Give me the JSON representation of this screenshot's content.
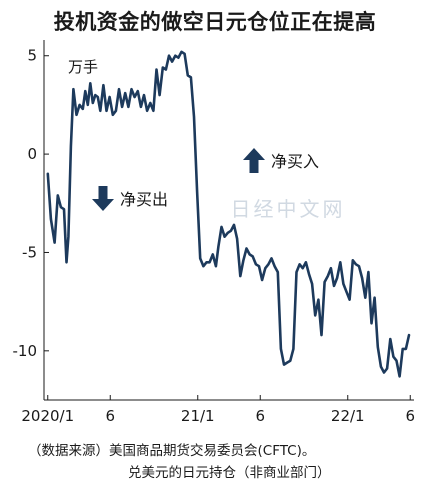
{
  "title": "投机资金的做空日元仓位正在提高",
  "watermark": "日经中文网",
  "source_line1": "（数据来源）美国商品期货交易委员会(CFTC)。",
  "source_line2": "兑美元的日元持仓（非商业部门）",
  "colors": {
    "line": "#1d3a5c",
    "arrow": "#1d3a5c",
    "axis": "#1a1a1a"
  },
  "chart_data": {
    "type": "line",
    "unit_label": "万手",
    "annotations": [
      {
        "text": "净买入",
        "direction": "up-arrow"
      },
      {
        "text": "净买出",
        "direction": "down-arrow"
      }
    ],
    "x_ticks": [
      {
        "label": "2020/1",
        "x": 0
      },
      {
        "label": "6",
        "x": 5
      },
      {
        "label": "21/1",
        "x": 12
      },
      {
        "label": "6",
        "x": 17
      },
      {
        "label": "22/1",
        "x": 24
      },
      {
        "label": "6",
        "x": 29
      }
    ],
    "xlim": [
      -0.3,
      29.3
    ],
    "y_ticks": [
      5,
      0,
      -5,
      -10
    ],
    "ylim": [
      -12.5,
      5.8
    ],
    "grid": false,
    "series": [
      {
        "x": [
          0.0,
          0.25,
          0.55,
          0.8,
          1.05,
          1.3,
          1.5,
          1.65,
          1.85,
          2.05,
          2.3,
          2.55,
          2.8,
          3.0,
          3.2,
          3.4,
          3.6,
          3.8,
          4.0,
          4.2,
          4.45,
          4.7,
          4.95,
          5.2,
          5.45,
          5.7,
          5.95,
          6.2,
          6.45,
          6.7,
          6.95,
          7.2,
          7.45,
          7.7,
          7.95,
          8.2,
          8.45,
          8.7,
          8.95,
          9.2,
          9.45,
          9.7,
          9.95,
          10.2,
          10.45,
          10.7,
          10.95,
          11.2,
          11.45,
          11.7,
          11.95,
          12.2,
          12.45,
          12.7,
          12.95,
          13.2,
          13.45,
          13.65,
          13.9,
          14.15,
          14.4,
          14.65,
          14.9,
          15.15,
          15.4,
          15.65,
          15.9,
          16.15,
          16.4,
          16.65,
          16.9,
          17.15,
          17.4,
          17.65,
          17.9,
          18.15,
          18.4,
          18.65,
          18.9,
          19.15,
          19.4,
          19.65,
          19.9,
          20.15,
          20.4,
          20.65,
          20.9,
          21.15,
          21.4,
          21.65,
          21.9,
          22.15,
          22.4,
          22.65,
          22.9,
          23.15,
          23.4,
          23.65,
          23.9,
          24.15,
          24.4,
          24.65,
          24.9,
          25.15,
          25.4,
          25.65,
          25.9,
          26.15,
          26.4,
          26.65,
          26.9,
          27.15,
          27.4,
          27.65,
          27.9,
          28.15,
          28.4,
          28.65,
          28.9
        ],
        "values": [
          -1.0,
          -3.3,
          -4.5,
          -2.1,
          -2.7,
          -2.8,
          -5.5,
          -4.2,
          0.4,
          3.3,
          2.0,
          2.5,
          2.3,
          3.2,
          2.5,
          3.6,
          2.6,
          3.0,
          2.9,
          2.2,
          3.5,
          2.2,
          2.9,
          2.0,
          2.2,
          3.3,
          2.4,
          3.1,
          2.4,
          3.3,
          2.9,
          3.2,
          2.4,
          3.0,
          2.2,
          2.6,
          2.2,
          4.3,
          3.0,
          4.4,
          4.3,
          5.0,
          4.7,
          5.0,
          4.9,
          5.2,
          5.1,
          4.0,
          3.9,
          1.9,
          -1.9,
          -5.3,
          -5.7,
          -5.5,
          -5.5,
          -5.1,
          -5.7,
          -4.7,
          -3.7,
          -4.2,
          -4.0,
          -3.9,
          -3.6,
          -4.3,
          -6.2,
          -5.4,
          -4.8,
          -5.1,
          -5.2,
          -5.6,
          -5.7,
          -6.4,
          -5.8,
          -5.6,
          -5.3,
          -5.7,
          -6.0,
          -9.9,
          -10.7,
          -10.6,
          -10.5,
          -9.9,
          -6.0,
          -5.6,
          -5.8,
          -5.5,
          -6.1,
          -6.6,
          -8.2,
          -7.4,
          -9.2,
          -6.5,
          -6.2,
          -5.8,
          -6.7,
          -6.3,
          -5.5,
          -6.6,
          -7.0,
          -7.4,
          -5.4,
          -5.6,
          -5.7,
          -6.3,
          -7.3,
          -6.0,
          -8.6,
          -7.3,
          -9.8,
          -10.8,
          -11.1,
          -10.9,
          -9.4,
          -10.3,
          -10.5,
          -11.3,
          -9.9,
          -9.9,
          -9.2
        ]
      }
    ]
  }
}
